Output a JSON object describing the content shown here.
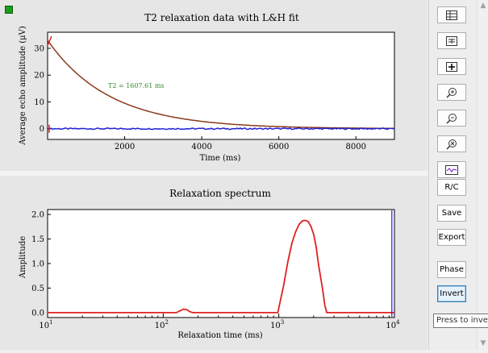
{
  "top_chart": {
    "title": "T2 relaxation data with L&H fit",
    "xlabel": "Time (ms)",
    "ylabel": "Average echo amplitude (μV)",
    "annotation": "T2 = 1607.61 ms",
    "xticks": [
      "2000",
      "4000",
      "6000",
      "8000"
    ],
    "yticks": [
      "0",
      "10",
      "20",
      "30"
    ]
  },
  "bottom_chart": {
    "title": "Relaxation spectrum",
    "xlabel": "Relaxation time (ms)",
    "ylabel": "Amplitude",
    "yticks": [
      "0.0",
      "0.5",
      "1.0",
      "1.5",
      "2.0"
    ],
    "xticks": [
      {
        "base": "10",
        "exp": "1"
      },
      {
        "base": "10",
        "exp": "2"
      },
      {
        "base": "10",
        "exp": "3"
      },
      {
        "base": "10",
        "exp": "4"
      }
    ]
  },
  "chart_data": [
    {
      "type": "line",
      "title": "T2 relaxation data with L&H fit",
      "xlabel": "Time (ms)",
      "ylabel": "Average echo amplitude (μV)",
      "xlim": [
        0,
        9000
      ],
      "ylim": [
        -4,
        36
      ],
      "grid": false,
      "annotation": "T2 = 1607.61 ms",
      "series": [
        {
          "color": "#8b3a1a",
          "model": "exponential_decay",
          "amplitude": 33,
          "t2": 1607.61,
          "x_range": [
            0,
            9000
          ]
        },
        {
          "color": "#1f1fd6",
          "model": "baseline_noise",
          "values": [
            0,
            0
          ],
          "x": [
            0,
            9000
          ]
        }
      ]
    },
    {
      "type": "line",
      "title": "Relaxation spectrum",
      "xlabel": "Relaxation time (ms)",
      "ylabel": "Amplitude",
      "xscale": "log",
      "xlim": [
        10,
        10000
      ],
      "ylim": [
        -0.1,
        2.1
      ],
      "grid": false,
      "series": [
        {
          "color": "#e02020",
          "x": [
            10,
            130,
            140,
            150,
            160,
            170,
            180,
            980,
            1000,
            1100,
            1200,
            1300,
            1400,
            1500,
            1600,
            1700,
            1800,
            1900,
            2000,
            2100,
            2200,
            2400,
            2500,
            2600,
            10000
          ],
          "values": [
            0,
            0,
            0.04,
            0.07,
            0.06,
            0.02,
            0,
            0,
            0.1,
            0.55,
            1.05,
            1.42,
            1.65,
            1.8,
            1.87,
            1.88,
            1.85,
            1.75,
            1.6,
            1.35,
            1.0,
            0.45,
            0.15,
            0,
            0
          ]
        }
      ],
      "marker_line": {
        "color": "#1f1fd6",
        "x": 9500
      }
    }
  ],
  "toolbar": {
    "buttons": [
      {
        "name": "data-table-button",
        "icon": "table-icon"
      },
      {
        "name": "table-view-button",
        "icon": "table-alt-icon"
      },
      {
        "name": "fit-view-button",
        "icon": "expand-icon"
      },
      {
        "name": "zoom-in-button",
        "icon": "zoom-in-icon"
      },
      {
        "name": "zoom-out-button",
        "icon": "zoom-out-icon"
      },
      {
        "name": "zoom-reset-button",
        "icon": "zoom-reset-icon"
      },
      {
        "name": "signal-view-button",
        "icon": "waveform-icon"
      }
    ],
    "rc_label": "R/C",
    "save_label": "Save",
    "export_label": "Export",
    "phase_label": "Phase",
    "invert_label": "Invert"
  },
  "tooltip": "Press to invert"
}
